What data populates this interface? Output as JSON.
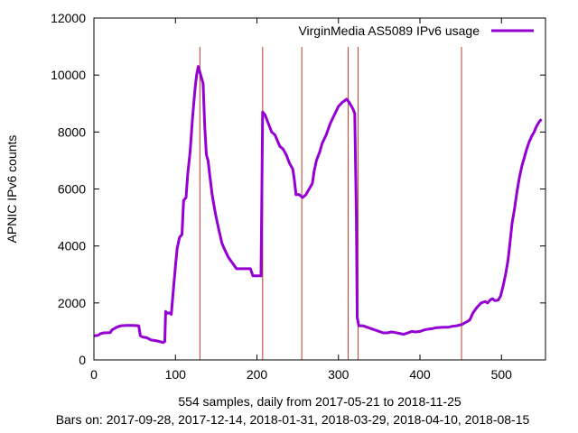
{
  "chart_data": {
    "type": "line",
    "legend_position": "top-right",
    "grid": false,
    "ylabel": "APNIC IPv6 counts",
    "xlabel": "554 samples, daily from 2017-05-21 to 2018-11-25",
    "xlabel2": "Bars on:  2017-09-28, 2017-12-14, 2018-01-31, 2018-03-29, 2018-04-10, 2018-08-15",
    "xlim": [
      0,
      554
    ],
    "ylim": [
      0,
      12000
    ],
    "xticks": [
      0,
      100,
      200,
      300,
      400,
      500
    ],
    "yticks": [
      0,
      2000,
      4000,
      6000,
      8000,
      10000,
      12000
    ],
    "vertical_bars_x": [
      130,
      207,
      255,
      312,
      324,
      451
    ],
    "series": [
      {
        "name": "VirginMedia AS5089 IPv6 usage",
        "color": "#9400d3",
        "points": [
          [
            0,
            850
          ],
          [
            5,
            860
          ],
          [
            8,
            920
          ],
          [
            12,
            950
          ],
          [
            20,
            960
          ],
          [
            22,
            1050
          ],
          [
            28,
            1150
          ],
          [
            33,
            1200
          ],
          [
            40,
            1210
          ],
          [
            48,
            1210
          ],
          [
            55,
            1200
          ],
          [
            57,
            850
          ],
          [
            60,
            800
          ],
          [
            65,
            780
          ],
          [
            70,
            700
          ],
          [
            75,
            680
          ],
          [
            80,
            650
          ],
          [
            85,
            610
          ],
          [
            87,
            650
          ],
          [
            88,
            1700
          ],
          [
            90,
            1640
          ],
          [
            93,
            1650
          ],
          [
            95,
            1600
          ],
          [
            97,
            2300
          ],
          [
            100,
            3300
          ],
          [
            102,
            3900
          ],
          [
            105,
            4300
          ],
          [
            108,
            4400
          ],
          [
            110,
            5600
          ],
          [
            113,
            5700
          ],
          [
            115,
            6500
          ],
          [
            118,
            7300
          ],
          [
            121,
            8500
          ],
          [
            124,
            9500
          ],
          [
            126,
            10000
          ],
          [
            128,
            10300
          ],
          [
            130,
            10100
          ],
          [
            132,
            9900
          ],
          [
            134,
            9700
          ],
          [
            136,
            8200
          ],
          [
            138,
            7200
          ],
          [
            140,
            7000
          ],
          [
            142,
            6500
          ],
          [
            145,
            5800
          ],
          [
            148,
            5300
          ],
          [
            150,
            5000
          ],
          [
            153,
            4600
          ],
          [
            157,
            4100
          ],
          [
            160,
            3900
          ],
          [
            165,
            3600
          ],
          [
            170,
            3400
          ],
          [
            175,
            3200
          ],
          [
            185,
            3200
          ],
          [
            192,
            3200
          ],
          [
            195,
            2950
          ],
          [
            200,
            2950
          ],
          [
            205,
            2950
          ],
          [
            206,
            5700
          ],
          [
            207,
            8700
          ],
          [
            210,
            8600
          ],
          [
            214,
            8300
          ],
          [
            218,
            8000
          ],
          [
            222,
            7900
          ],
          [
            225,
            7700
          ],
          [
            228,
            7500
          ],
          [
            232,
            7400
          ],
          [
            236,
            7200
          ],
          [
            240,
            6900
          ],
          [
            244,
            6700
          ],
          [
            246,
            6300
          ],
          [
            248,
            5800
          ],
          [
            252,
            5800
          ],
          [
            256,
            5700
          ],
          [
            260,
            5800
          ],
          [
            264,
            6000
          ],
          [
            268,
            6200
          ],
          [
            270,
            6600
          ],
          [
            273,
            7000
          ],
          [
            277,
            7300
          ],
          [
            280,
            7600
          ],
          [
            285,
            7900
          ],
          [
            290,
            8300
          ],
          [
            295,
            8600
          ],
          [
            300,
            8900
          ],
          [
            305,
            9050
          ],
          [
            310,
            9150
          ],
          [
            313,
            9050
          ],
          [
            316,
            8900
          ],
          [
            318,
            8800
          ],
          [
            320,
            8650
          ],
          [
            322,
            5000
          ],
          [
            323,
            1500
          ],
          [
            325,
            1200
          ],
          [
            330,
            1200
          ],
          [
            335,
            1150
          ],
          [
            340,
            1100
          ],
          [
            345,
            1050
          ],
          [
            350,
            1000
          ],
          [
            355,
            950
          ],
          [
            360,
            950
          ],
          [
            365,
            980
          ],
          [
            370,
            960
          ],
          [
            375,
            930
          ],
          [
            380,
            900
          ],
          [
            385,
            950
          ],
          [
            390,
            1000
          ],
          [
            395,
            980
          ],
          [
            400,
            1000
          ],
          [
            405,
            1050
          ],
          [
            410,
            1080
          ],
          [
            415,
            1100
          ],
          [
            420,
            1130
          ],
          [
            425,
            1140
          ],
          [
            430,
            1150
          ],
          [
            435,
            1150
          ],
          [
            440,
            1180
          ],
          [
            445,
            1200
          ],
          [
            448,
            1220
          ],
          [
            452,
            1250
          ],
          [
            455,
            1300
          ],
          [
            458,
            1350
          ],
          [
            461,
            1400
          ],
          [
            465,
            1650
          ],
          [
            470,
            1850
          ],
          [
            475,
            2000
          ],
          [
            480,
            2050
          ],
          [
            483,
            2000
          ],
          [
            486,
            2100
          ],
          [
            489,
            2150
          ],
          [
            492,
            2080
          ],
          [
            496,
            2100
          ],
          [
            499,
            2250
          ],
          [
            502,
            2600
          ],
          [
            505,
            3000
          ],
          [
            508,
            3500
          ],
          [
            510,
            4000
          ],
          [
            513,
            4800
          ],
          [
            516,
            5300
          ],
          [
            519,
            5900
          ],
          [
            522,
            6400
          ],
          [
            525,
            6800
          ],
          [
            528,
            7100
          ],
          [
            531,
            7400
          ],
          [
            534,
            7650
          ],
          [
            537,
            7850
          ],
          [
            540,
            8000
          ],
          [
            543,
            8200
          ],
          [
            546,
            8350
          ],
          [
            549,
            8450
          ]
        ]
      }
    ]
  }
}
